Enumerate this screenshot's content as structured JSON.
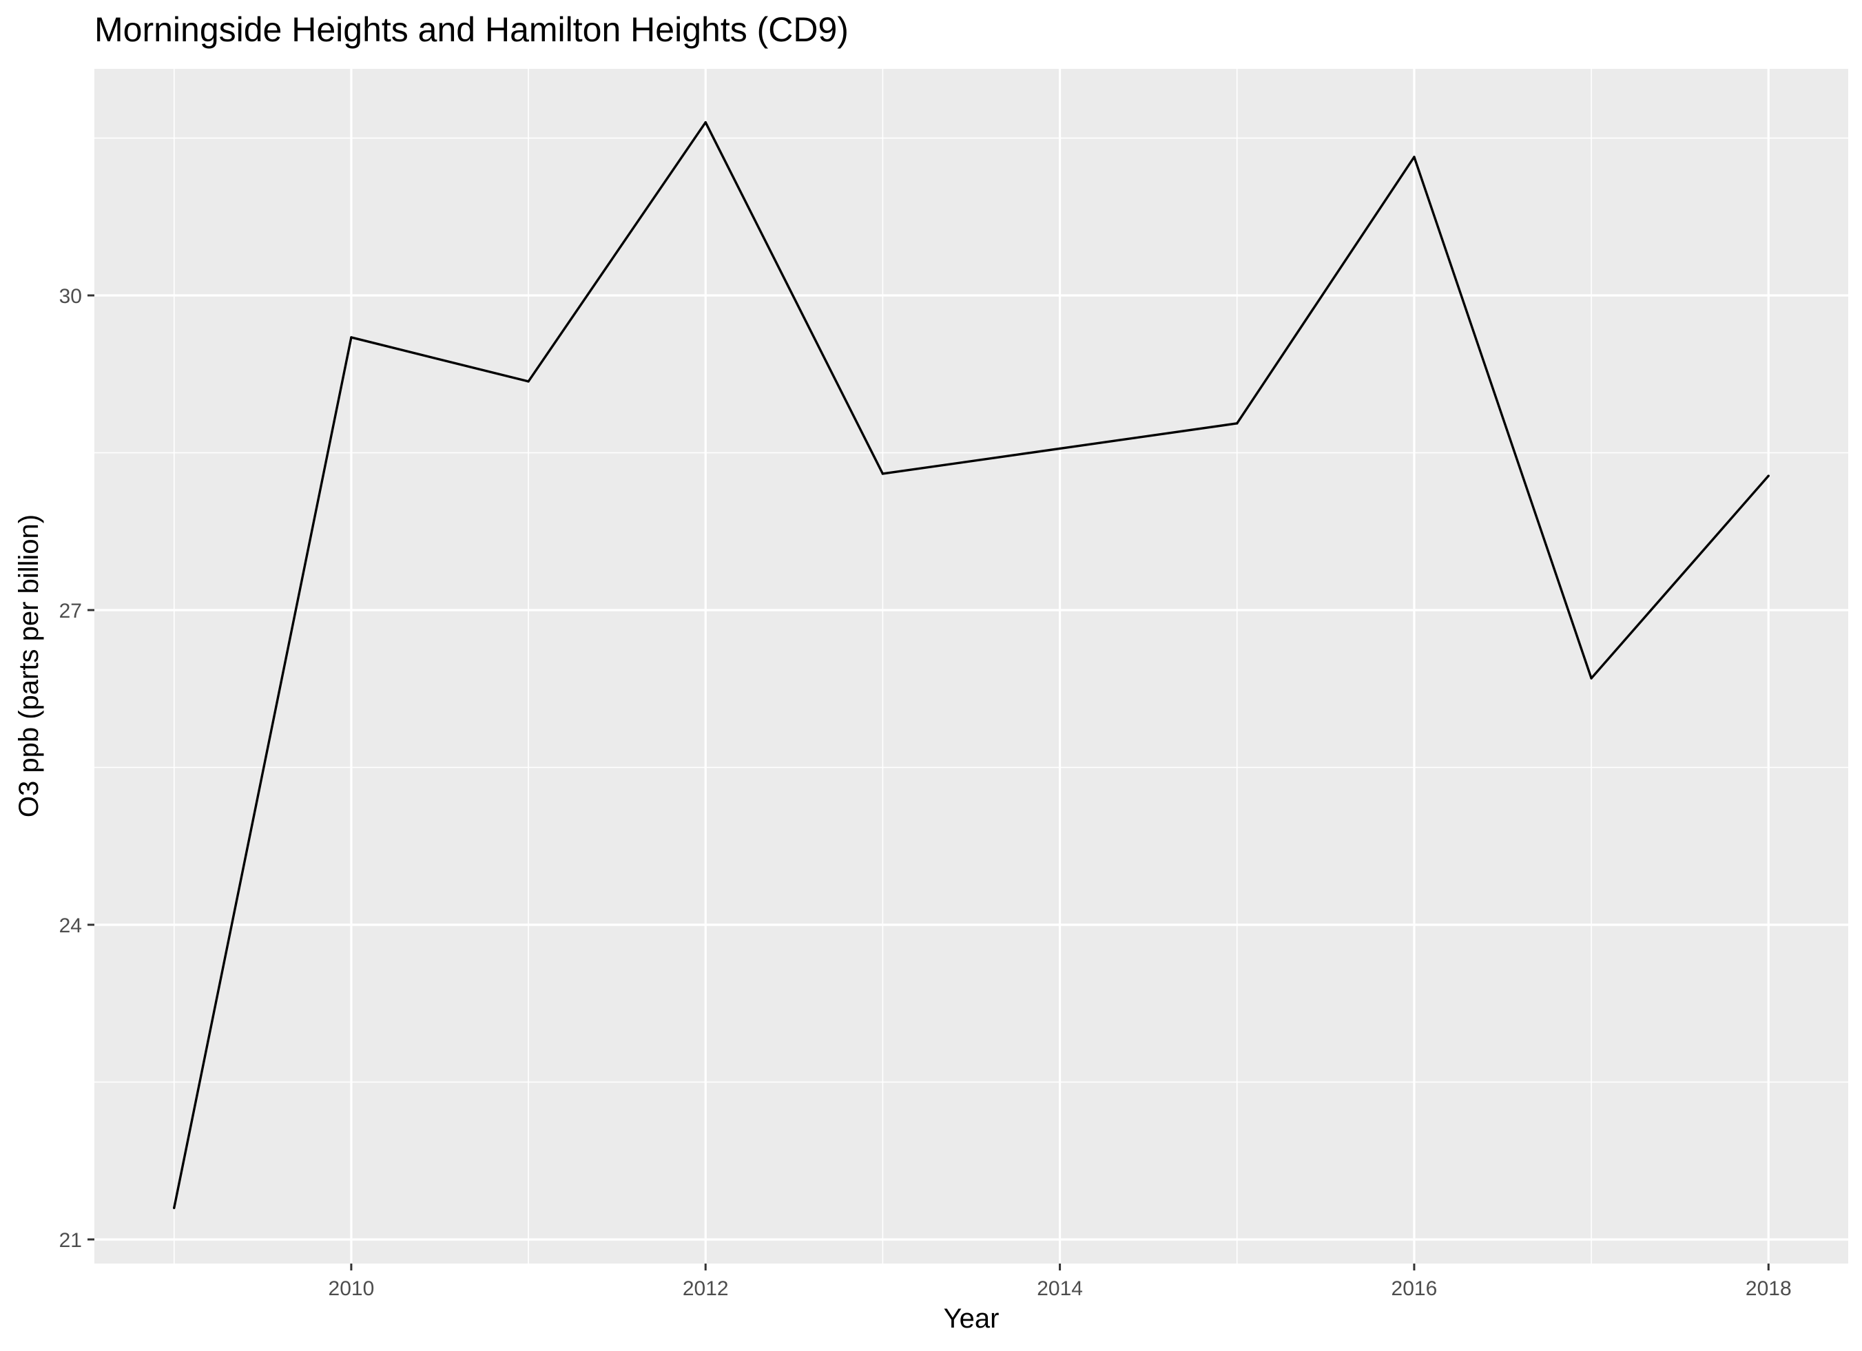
{
  "chart_data": {
    "type": "line",
    "title": "Morningside Heights and Hamilton Heights (CD9)",
    "xlabel": "Year",
    "ylabel": "O3 ppb (parts per billion)",
    "x": [
      2009,
      2010,
      2011,
      2012,
      2013,
      2014,
      2015,
      2016,
      2017,
      2018
    ],
    "series": [
      {
        "values": [
          21.3,
          29.6,
          29.18,
          31.65,
          28.3,
          28.54,
          28.78,
          31.32,
          26.35,
          28.28
        ]
      }
    ],
    "xlim": [
      2008.55,
      2018.45
    ],
    "ylim": [
      20.77,
      32.16
    ],
    "x_ticks": [
      2010,
      2012,
      2014,
      2016,
      2018
    ],
    "x_tick_labels": [
      "2010",
      "2012",
      "2014",
      "2016",
      "2018"
    ],
    "y_ticks": [
      21,
      24,
      27,
      30
    ],
    "y_tick_labels": [
      "21",
      "24",
      "27",
      "30"
    ],
    "grid": true,
    "legend": "none",
    "colors": {
      "panel_background": "#ebebeb",
      "grid": "#ffffff",
      "line": "#000000",
      "tick_text": "#4d4d4d"
    }
  }
}
